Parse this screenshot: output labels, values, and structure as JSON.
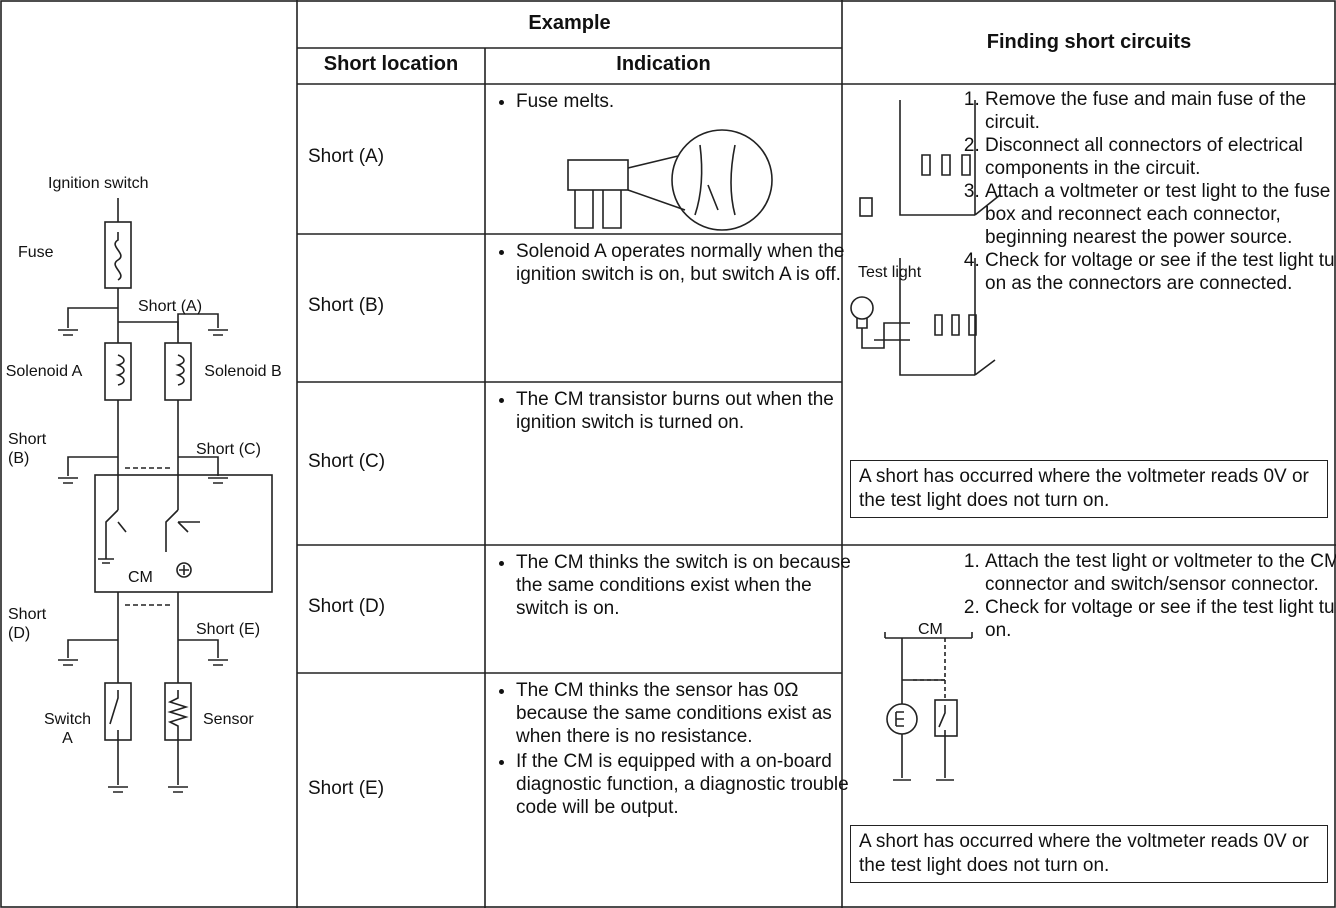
{
  "header": {
    "example": "Example",
    "short_location": "Short location",
    "indication": "Indication",
    "finding": "Finding short circuits"
  },
  "rows": [
    {
      "location": "Short (A)",
      "indications": [
        "Fuse melts."
      ]
    },
    {
      "location": "Short (B)",
      "indications": [
        "Solenoid A operates normally when the ignition switch is on, but switch A is off."
      ]
    },
    {
      "location": "Short (C)",
      "indications": [
        "The CM transistor burns out when the ignition switch is turned on."
      ]
    },
    {
      "location": "Short (D)",
      "indications": [
        "The CM thinks the switch is on because the same conditions exist when the switch is on."
      ]
    },
    {
      "location": "Short (E)",
      "indications": [
        "The CM thinks the sensor has 0Ω because the same conditions exist as when there is no resistance.",
        "If the CM is equipped with a on-board diagnostic function, a diagnostic trouble code will be output."
      ]
    }
  ],
  "finding": [
    {
      "steps": [
        "Remove the fuse and main fuse of the circuit.",
        "Disconnect all connectors of electrical components in the circuit.",
        "Attach a voltmeter or test light to the fuse box and reconnect each connector, beginning nearest the power source.",
        "Check for voltage or see if the test light turns on as the connectors are connected."
      ],
      "note": "A short has occurred where the voltmeter reads 0V or the test light does not turn on."
    },
    {
      "steps": [
        "Attach the test light or voltmeter to the CM connector and switch/sensor connector.",
        "Check for voltage or see if the test light turns on."
      ],
      "note": "A short has occurred where the voltmeter reads 0V or the test light does not turn on."
    }
  ],
  "diagram": {
    "ignition_switch": "Ignition switch",
    "fuse": "Fuse",
    "short_a": "Short (A)",
    "solenoid_a": "Solenoid A",
    "solenoid_b": "Solenoid B",
    "short_b": "Short (B)",
    "short_c": "Short (C)",
    "cm": "CM",
    "short_d": "Short (D)",
    "short_e": "Short (E)",
    "switch_a": "Switch A",
    "sensor": "Sensor"
  },
  "illustrations": {
    "test_light": "Test light",
    "cm": "CM"
  }
}
